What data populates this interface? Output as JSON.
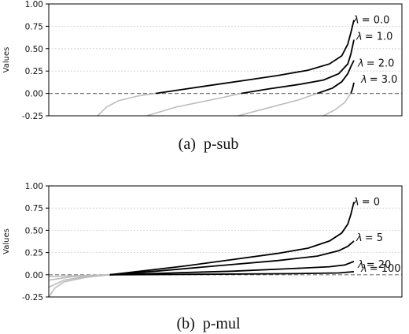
{
  "chart_data": [
    {
      "type": "line",
      "caption": "(a)  p-sub",
      "ylabel": "Values",
      "ylim": [
        -0.25,
        1.0
      ],
      "yticks": [
        "1.00",
        "0.75",
        "0.50",
        "0.25",
        "0.00",
        "-0.25"
      ],
      "ytick_values": [
        1.0,
        0.75,
        0.5,
        0.25,
        0.0,
        -0.25
      ],
      "grid": true,
      "reference_line": 0.0,
      "series": [
        {
          "name": "λ = 0.0",
          "lambda_symbol": "λ",
          "lambda_value": "= 0.0",
          "color": "#000000",
          "points": [
            [
              0.16,
              -0.25
            ],
            [
              0.19,
              -0.15
            ],
            [
              0.23,
              -0.08
            ],
            [
              0.29,
              -0.03
            ],
            [
              0.35,
              0.0
            ],
            [
              0.45,
              0.05
            ],
            [
              0.55,
              0.1
            ],
            [
              0.65,
              0.15
            ],
            [
              0.75,
              0.2
            ],
            [
              0.85,
              0.26
            ],
            [
              0.92,
              0.33
            ],
            [
              0.96,
              0.42
            ],
            [
              0.98,
              0.55
            ],
            [
              0.99,
              0.68
            ],
            [
              1.0,
              0.82
            ]
          ]
        },
        {
          "name": "λ = 1.0",
          "lambda_symbol": "λ",
          "lambda_value": "= 1.0",
          "color": "#000000",
          "points": [
            [
              0.32,
              -0.25
            ],
            [
              0.42,
              -0.15
            ],
            [
              0.55,
              -0.06
            ],
            [
              0.63,
              0.0
            ],
            [
              0.72,
              0.05
            ],
            [
              0.82,
              0.1
            ],
            [
              0.9,
              0.15
            ],
            [
              0.95,
              0.22
            ],
            [
              0.98,
              0.33
            ],
            [
              0.99,
              0.44
            ],
            [
              1.0,
              0.6
            ]
          ]
        },
        {
          "name": "λ = 2.0",
          "lambda_symbol": "λ",
          "lambda_value": "= 2.0",
          "color": "#000000",
          "points": [
            [
              0.62,
              -0.25
            ],
            [
              0.72,
              -0.16
            ],
            [
              0.82,
              -0.07
            ],
            [
              0.88,
              0.0
            ],
            [
              0.93,
              0.06
            ],
            [
              0.96,
              0.13
            ],
            [
              0.98,
              0.22
            ],
            [
              0.99,
              0.3
            ],
            [
              1.0,
              0.37
            ]
          ]
        },
        {
          "name": "λ = 3.0",
          "lambda_symbol": "λ",
          "lambda_value": "= 3.0",
          "color": "#000000",
          "points": [
            [
              0.9,
              -0.25
            ],
            [
              0.94,
              -0.18
            ],
            [
              0.97,
              -0.1
            ],
            [
              0.985,
              -0.02
            ],
            [
              0.99,
              0.0
            ],
            [
              0.995,
              0.05
            ],
            [
              1.0,
              0.12
            ]
          ]
        }
      ]
    },
    {
      "type": "line",
      "caption": "(b)  p-mul",
      "ylabel": "Values",
      "ylim": [
        -0.25,
        1.0
      ],
      "yticks": [
        "1.00",
        "0.75",
        "0.50",
        "0.25",
        "0.00",
        "-0.25"
      ],
      "ytick_values": [
        1.0,
        0.75,
        0.5,
        0.25,
        0.0,
        -0.25
      ],
      "grid": true,
      "reference_line": 0.0,
      "series": [
        {
          "name": "λ = 0",
          "lambda_symbol": "λ",
          "lambda_value": "= 0",
          "color": "#000000",
          "points": [
            [
              0.0,
              -0.25
            ],
            [
              0.02,
              -0.15
            ],
            [
              0.05,
              -0.08
            ],
            [
              0.12,
              -0.03
            ],
            [
              0.2,
              0.0
            ],
            [
              0.3,
              0.04
            ],
            [
              0.45,
              0.1
            ],
            [
              0.6,
              0.17
            ],
            [
              0.75,
              0.24
            ],
            [
              0.85,
              0.3
            ],
            [
              0.92,
              0.38
            ],
            [
              0.96,
              0.47
            ],
            [
              0.98,
              0.57
            ],
            [
              0.99,
              0.68
            ],
            [
              1.0,
              0.82
            ]
          ]
        },
        {
          "name": "λ = 5",
          "lambda_symbol": "λ",
          "lambda_value": "= 5",
          "color": "#000000",
          "points": [
            [
              0.0,
              -0.14
            ],
            [
              0.05,
              -0.06
            ],
            [
              0.12,
              -0.02
            ],
            [
              0.2,
              0.0
            ],
            [
              0.35,
              0.04
            ],
            [
              0.55,
              0.1
            ],
            [
              0.75,
              0.16
            ],
            [
              0.88,
              0.21
            ],
            [
              0.95,
              0.27
            ],
            [
              0.98,
              0.32
            ],
            [
              1.0,
              0.38
            ]
          ]
        },
        {
          "name": "λ = 20",
          "lambda_symbol": "λ",
          "lambda_value": "= 20",
          "color": "#000000",
          "points": [
            [
              0.0,
              -0.06
            ],
            [
              0.08,
              -0.02
            ],
            [
              0.2,
              0.0
            ],
            [
              0.4,
              0.02
            ],
            [
              0.6,
              0.04
            ],
            [
              0.8,
              0.07
            ],
            [
              0.92,
              0.09
            ],
            [
              0.97,
              0.11
            ],
            [
              1.0,
              0.15
            ]
          ]
        },
        {
          "name": "λ = 100",
          "lambda_symbol": "λ",
          "lambda_value": "= 100",
          "color": "#000000",
          "points": [
            [
              0.0,
              -0.02
            ],
            [
              0.15,
              -0.005
            ],
            [
              0.2,
              0.0
            ],
            [
              0.5,
              0.005
            ],
            [
              0.8,
              0.012
            ],
            [
              0.95,
              0.02
            ],
            [
              1.0,
              0.035
            ]
          ]
        }
      ]
    }
  ]
}
